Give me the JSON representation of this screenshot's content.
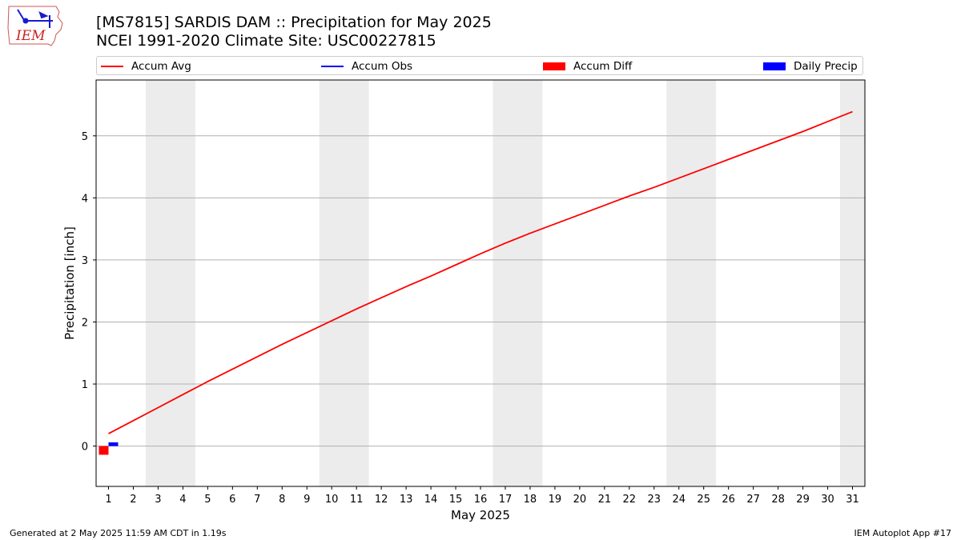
{
  "header": {
    "title_line1": "[MS7815] SARDIS DAM :: Precipitation for May 2025",
    "title_line2": "NCEI 1991-2020 Climate Site: USC00227815"
  },
  "logo": {
    "text": "IEM",
    "color": "#cc2222",
    "accent": "#1a1ad0"
  },
  "legend": {
    "items": [
      {
        "label": "Accum Avg",
        "kind": "line",
        "color": "#ff0000"
      },
      {
        "label": "Accum Obs",
        "kind": "line",
        "color": "#0000ff"
      },
      {
        "label": "Accum Diff",
        "kind": "patch",
        "color": "#ff0000"
      },
      {
        "label": "Daily Precip",
        "kind": "patch",
        "color": "#0000ff"
      }
    ]
  },
  "chart_data": {
    "type": "line",
    "title": "[MS7815] SARDIS DAM :: Precipitation for May 2025",
    "subtitle": "NCEI 1991-2020 Climate Site: USC00227815",
    "xlabel": "May 2025",
    "ylabel": "Precipitation [inch]",
    "x": [
      1,
      2,
      3,
      4,
      5,
      6,
      7,
      8,
      9,
      10,
      11,
      12,
      13,
      14,
      15,
      16,
      17,
      18,
      19,
      20,
      21,
      22,
      23,
      24,
      25,
      26,
      27,
      28,
      29,
      30,
      31
    ],
    "ylim": [
      -0.65,
      5.9
    ],
    "xlim": [
      0.5,
      31.5
    ],
    "yticks": [
      0,
      1,
      2,
      3,
      4,
      5
    ],
    "grid": "horizontal",
    "weekend_shading": [
      [
        2.5,
        4.5
      ],
      [
        9.5,
        11.5
      ],
      [
        16.5,
        18.5
      ],
      [
        23.5,
        25.5
      ],
      [
        30.5,
        31.5
      ]
    ],
    "shading_color": "#ececec",
    "series": [
      {
        "name": "Accum Avg",
        "type": "line",
        "color": "#ff0000",
        "x": [
          1,
          2,
          3,
          4,
          5,
          6,
          7,
          8,
          9,
          10,
          11,
          12,
          13,
          14,
          15,
          16,
          17,
          18,
          19,
          20,
          21,
          22,
          23,
          24,
          25,
          26,
          27,
          28,
          29,
          30,
          31
        ],
        "values": [
          0.2,
          0.41,
          0.62,
          0.83,
          1.04,
          1.24,
          1.44,
          1.64,
          1.83,
          2.02,
          2.21,
          2.39,
          2.57,
          2.74,
          2.92,
          3.1,
          3.27,
          3.43,
          3.58,
          3.73,
          3.88,
          4.03,
          4.17,
          4.32,
          4.47,
          4.62,
          4.77,
          4.92,
          5.07,
          5.23,
          5.39
        ]
      },
      {
        "name": "Accum Diff",
        "type": "bar",
        "color": "#ff0000",
        "x": [
          1
        ],
        "values": [
          -0.14
        ]
      },
      {
        "name": "Daily Precip",
        "type": "bar",
        "color": "#0000ff",
        "x": [
          1
        ],
        "values": [
          0.06
        ]
      }
    ]
  },
  "footer": {
    "left": "Generated at 2 May 2025 11:59 AM CDT in 1.19s",
    "right": "IEM Autoplot App #17"
  }
}
